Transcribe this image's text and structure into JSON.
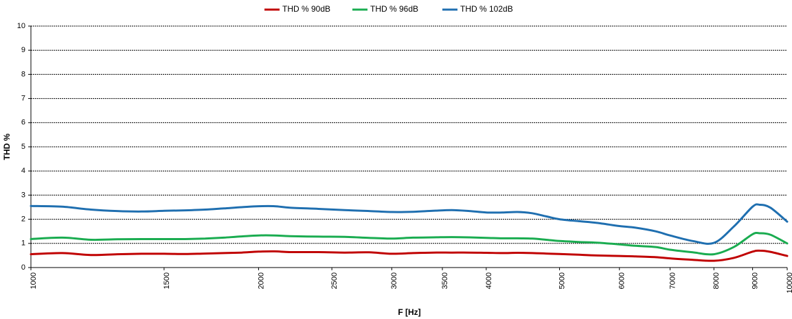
{
  "chart_data": {
    "type": "line",
    "title": "",
    "xlabel": "F [Hz]",
    "ylabel": "THD %",
    "x_scale": "log",
    "xlim": [
      1000,
      10000
    ],
    "ylim": [
      0,
      10
    ],
    "grid": true,
    "legend_position": "top-center",
    "x_ticks": [
      1000,
      1500,
      2000,
      2500,
      3000,
      3500,
      4000,
      5000,
      6000,
      7000,
      8000,
      9000,
      10000
    ],
    "y_ticks": [
      0,
      1,
      2,
      3,
      4,
      5,
      6,
      7,
      8,
      9,
      10
    ],
    "x": [
      1000,
      1100,
      1200,
      1300,
      1400,
      1500,
      1600,
      1700,
      1800,
      1900,
      2000,
      2100,
      2200,
      2400,
      2600,
      2800,
      3000,
      3200,
      3400,
      3600,
      3800,
      4000,
      4200,
      4400,
      4600,
      4800,
      5000,
      5300,
      5600,
      6000,
      6300,
      6700,
      7000,
      7500,
      8000,
      8500,
      9000,
      9200,
      9500,
      10000
    ],
    "series": [
      {
        "name": "THD % 90dB",
        "color": "#c00000",
        "values": [
          0.55,
          0.6,
          0.52,
          0.55,
          0.57,
          0.57,
          0.56,
          0.58,
          0.6,
          0.62,
          0.66,
          0.67,
          0.64,
          0.64,
          0.62,
          0.63,
          0.57,
          0.6,
          0.62,
          0.62,
          0.62,
          0.61,
          0.6,
          0.61,
          0.6,
          0.58,
          0.56,
          0.53,
          0.5,
          0.48,
          0.46,
          0.43,
          0.38,
          0.32,
          0.28,
          0.4,
          0.66,
          0.7,
          0.65,
          0.48
        ]
      },
      {
        "name": "THD % 96dB",
        "color": "#1aac50",
        "values": [
          1.18,
          1.24,
          1.15,
          1.17,
          1.18,
          1.18,
          1.18,
          1.2,
          1.24,
          1.29,
          1.33,
          1.33,
          1.3,
          1.28,
          1.27,
          1.23,
          1.2,
          1.24,
          1.25,
          1.26,
          1.25,
          1.23,
          1.21,
          1.21,
          1.2,
          1.15,
          1.1,
          1.06,
          1.03,
          0.96,
          0.9,
          0.85,
          0.74,
          0.63,
          0.55,
          0.85,
          1.38,
          1.42,
          1.36,
          1.0
        ]
      },
      {
        "name": "THD % 102dB",
        "color": "#1f6fb0",
        "values": [
          2.55,
          2.52,
          2.4,
          2.34,
          2.32,
          2.35,
          2.37,
          2.4,
          2.45,
          2.5,
          2.54,
          2.54,
          2.48,
          2.43,
          2.38,
          2.34,
          2.3,
          2.31,
          2.35,
          2.38,
          2.34,
          2.28,
          2.28,
          2.3,
          2.25,
          2.12,
          2.0,
          1.92,
          1.85,
          1.72,
          1.65,
          1.5,
          1.33,
          1.1,
          1.02,
          1.7,
          2.52,
          2.6,
          2.48,
          1.9
        ]
      }
    ]
  }
}
